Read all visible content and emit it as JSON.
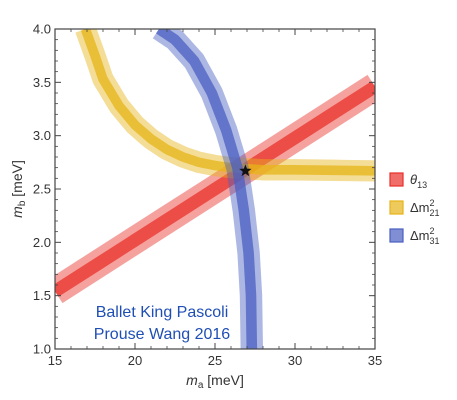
{
  "chart_data": {
    "type": "area",
    "xlabel": {
      "symbol": "m",
      "sub": "a",
      "unit": " [meV]"
    },
    "ylabel": {
      "symbol": "m",
      "sub": "b",
      "unit": " [meV]"
    },
    "xlim": [
      15,
      35
    ],
    "ylim": [
      1.0,
      4.0
    ],
    "xticks": [
      "15",
      "20",
      "25",
      "30",
      "35"
    ],
    "yticks": [
      "1.0",
      "1.5",
      "2.0",
      "2.5",
      "3.0",
      "3.5",
      "4.0"
    ],
    "grid": false,
    "legend_position": "right",
    "annotation": [
      "Ballet King Pascoli",
      "Prouse Wang 2016"
    ],
    "best_fit": {
      "x": 26.9,
      "y": 2.67,
      "marker": "star"
    },
    "series": [
      {
        "name": "θ13",
        "sym": "θ",
        "sub": "13",
        "sup": "",
        "color": "#e8302a",
        "shape": "line",
        "center": [
          [
            15,
            1.54
          ],
          [
            35,
            3.46
          ]
        ],
        "outer_half_width": 0.13,
        "inner_half_width": 0.06
      },
      {
        "name": "Δm²21",
        "sym": "Δm",
        "sub": "21",
        "sup": "2",
        "color": "#e7b418",
        "shape": "curve",
        "center": [
          [
            16.9,
            4.0
          ],
          [
            17.5,
            3.75
          ],
          [
            18,
            3.53
          ],
          [
            19,
            3.28
          ],
          [
            20,
            3.1
          ],
          [
            21,
            2.97
          ],
          [
            22,
            2.87
          ],
          [
            23,
            2.8
          ],
          [
            24,
            2.75
          ],
          [
            25,
            2.72
          ],
          [
            26,
            2.7
          ],
          [
            28,
            2.68
          ],
          [
            30,
            2.68
          ],
          [
            35,
            2.67
          ]
        ],
        "outer_half_width": 0.1,
        "inner_half_width": 0.045
      },
      {
        "name": "Δm²31",
        "sym": "Δm",
        "sub": "31",
        "sup": "2",
        "color": "#4a5fc1",
        "shape": "curve",
        "center": [
          [
            21.5,
            4.0
          ],
          [
            22.5,
            3.9
          ],
          [
            23.7,
            3.7
          ],
          [
            24.8,
            3.4
          ],
          [
            25.7,
            3.05
          ],
          [
            26.4,
            2.7
          ],
          [
            26.8,
            2.3
          ],
          [
            27.1,
            1.9
          ],
          [
            27.25,
            1.5
          ],
          [
            27.3,
            1.0
          ]
        ],
        "outer_half_width": 0.7,
        "inner_half_width": 0.33
      }
    ]
  }
}
